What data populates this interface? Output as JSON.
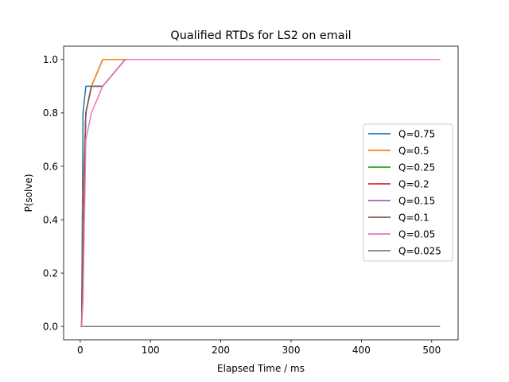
{
  "chart_data": {
    "type": "line",
    "title": "Qualified RTDs for LS2 on email",
    "xlabel": "Elapsed Time / ms",
    "ylabel": "P(solve)",
    "xlim": [
      -23.6,
      537.6
    ],
    "ylim": [
      -0.05,
      1.05
    ],
    "xticks": [
      0,
      100,
      200,
      300,
      400,
      500
    ],
    "yticks": [
      0.0,
      0.2,
      0.4,
      0.6,
      0.8,
      1.0
    ],
    "xtick_labels": [
      "0",
      "100",
      "200",
      "300",
      "400",
      "500"
    ],
    "ytick_labels": [
      "0.0",
      "0.2",
      "0.4",
      "0.6",
      "0.8",
      "1.0"
    ],
    "grid": false,
    "legend_position": "center-right",
    "series": [
      {
        "name": "Q=0.75",
        "color": "#1f77b4",
        "x": [
          1,
          2,
          4,
          8,
          16,
          32,
          64,
          128,
          256,
          512
        ],
        "y": [
          0.0,
          0.0,
          0.8,
          0.9,
          0.9,
          1.0,
          1.0,
          1.0,
          1.0,
          1.0
        ]
      },
      {
        "name": "Q=0.5",
        "color": "#ff7f0e",
        "x": [
          1,
          2,
          4,
          8,
          16,
          32,
          64,
          128,
          256,
          512
        ],
        "y": [
          0.0,
          0.0,
          0.5,
          0.8,
          0.9,
          1.0,
          1.0,
          1.0,
          1.0,
          1.0
        ]
      },
      {
        "name": "Q=0.25",
        "color": "#2ca02c",
        "x": [
          1,
          2,
          4,
          8,
          16,
          32,
          64,
          128,
          256,
          512
        ],
        "y": [
          0.0,
          0.0,
          0.4,
          0.8,
          0.9,
          0.9,
          1.0,
          1.0,
          1.0,
          1.0
        ]
      },
      {
        "name": "Q=0.2",
        "color": "#d62728",
        "x": [
          1,
          2,
          4,
          8,
          16,
          32,
          64,
          128,
          256,
          512
        ],
        "y": [
          0.0,
          0.0,
          0.4,
          0.8,
          0.9,
          0.9,
          1.0,
          1.0,
          1.0,
          1.0
        ]
      },
      {
        "name": "Q=0.15",
        "color": "#9467bd",
        "x": [
          1,
          2,
          4,
          8,
          16,
          32,
          64,
          128,
          256,
          512
        ],
        "y": [
          0.0,
          0.0,
          0.4,
          0.8,
          0.9,
          0.9,
          1.0,
          1.0,
          1.0,
          1.0
        ]
      },
      {
        "name": "Q=0.1",
        "color": "#8c564b",
        "x": [
          1,
          2,
          4,
          8,
          16,
          32,
          64,
          128,
          256,
          512
        ],
        "y": [
          0.0,
          0.0,
          0.4,
          0.8,
          0.9,
          0.9,
          1.0,
          1.0,
          1.0,
          1.0
        ]
      },
      {
        "name": "Q=0.05",
        "color": "#e377c2",
        "x": [
          1,
          2,
          4,
          8,
          16,
          32,
          64,
          128,
          256,
          512
        ],
        "y": [
          0.0,
          0.0,
          0.1,
          0.7,
          0.8,
          0.9,
          1.0,
          1.0,
          1.0,
          1.0
        ]
      },
      {
        "name": "Q=0.025",
        "color": "#7f7f7f",
        "x": [
          1,
          2,
          4,
          8,
          16,
          32,
          64,
          128,
          256,
          512
        ],
        "y": [
          0.0,
          0.0,
          0.0,
          0.0,
          0.0,
          0.0,
          0.0,
          0.0,
          0.0,
          0.0
        ]
      }
    ]
  }
}
